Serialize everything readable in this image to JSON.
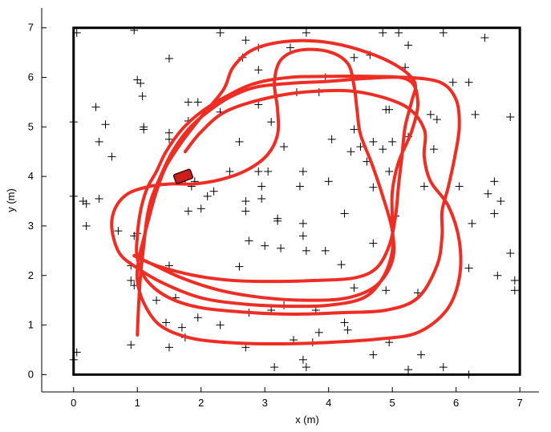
{
  "chart_data": {
    "type": "scatter",
    "xlabel": "x (m)",
    "ylabel": "y (m)",
    "xlim": [
      -0.5,
      7.3
    ],
    "ylim": [
      -0.35,
      7.4
    ],
    "xticks": [
      "0",
      "1",
      "2",
      "3",
      "4",
      "5",
      "6",
      "7"
    ],
    "yticks": [
      "0",
      "1",
      "2",
      "3",
      "4",
      "5",
      "6",
      "7"
    ],
    "grid": false,
    "arena": {
      "x": [
        0,
        7
      ],
      "y": [
        0,
        7
      ]
    },
    "colors": {
      "trajectory": "#ee2d24",
      "landmark": "#000000",
      "robot": "#cc1f1a",
      "arena": "#000000"
    },
    "robot_pose": {
      "x": 1.72,
      "y": 4.0,
      "heading_deg": 20
    },
    "landmarks": [
      [
        0.05,
        6.9
      ],
      [
        0.95,
        6.95
      ],
      [
        1.5,
        6.38
      ],
      [
        1.0,
        5.95
      ],
      [
        1.05,
        5.88
      ],
      [
        1.08,
        5.62
      ],
      [
        0.35,
        5.4
      ],
      [
        0.5,
        5.05
      ],
      [
        0.0,
        5.1
      ],
      [
        0.4,
        4.7
      ],
      [
        0.6,
        4.4
      ],
      [
        1.1,
        5.0
      ],
      [
        1.1,
        4.95
      ],
      [
        1.5,
        4.88
      ],
      [
        1.5,
        4.75
      ],
      [
        1.8,
        5.5
      ],
      [
        1.95,
        5.5
      ],
      [
        1.8,
        5.12
      ],
      [
        2.3,
        6.9
      ],
      [
        2.7,
        6.75
      ],
      [
        2.9,
        6.6
      ],
      [
        2.65,
        6.4
      ],
      [
        2.9,
        6.15
      ],
      [
        3.4,
        6.6
      ],
      [
        3.65,
        6.9
      ],
      [
        3.95,
        6.0
      ],
      [
        3.5,
        5.7
      ],
      [
        3.85,
        5.7
      ],
      [
        2.3,
        5.3
      ],
      [
        2.9,
        5.45
      ],
      [
        3.1,
        5.1
      ],
      [
        2.6,
        4.7
      ],
      [
        2.45,
        4.1
      ],
      [
        2.9,
        4.1
      ],
      [
        3.05,
        4.1
      ],
      [
        3.6,
        4.1
      ],
      [
        3.3,
        4.6
      ],
      [
        4.05,
        4.75
      ],
      [
        4.4,
        6.4
      ],
      [
        4.65,
        6.45
      ],
      [
        4.85,
        6.9
      ],
      [
        5.1,
        6.9
      ],
      [
        5.25,
        6.65
      ],
      [
        5.8,
        6.9
      ],
      [
        6.45,
        6.8
      ],
      [
        5.2,
        6.2
      ],
      [
        5.95,
        5.9
      ],
      [
        6.2,
        5.9
      ],
      [
        6.3,
        5.25
      ],
      [
        6.85,
        5.2
      ],
      [
        4.9,
        5.35
      ],
      [
        4.95,
        5.35
      ],
      [
        4.4,
        4.95
      ],
      [
        4.5,
        4.6
      ],
      [
        4.7,
        4.7
      ],
      [
        4.85,
        4.55
      ],
      [
        5.0,
        4.7
      ],
      [
        5.25,
        4.8
      ],
      [
        5.6,
        5.25
      ],
      [
        5.7,
        5.15
      ],
      [
        5.65,
        4.55
      ],
      [
        4.35,
        4.5
      ],
      [
        4.95,
        4.1
      ],
      [
        4.6,
        4.3
      ],
      [
        4.0,
        3.9
      ],
      [
        3.55,
        3.8
      ],
      [
        2.95,
        3.8
      ],
      [
        2.95,
        3.55
      ],
      [
        2.7,
        3.5
      ],
      [
        2.7,
        3.3
      ],
      [
        2.2,
        3.7
      ],
      [
        2.1,
        3.6
      ],
      [
        2.0,
        3.35
      ],
      [
        1.8,
        3.3
      ],
      [
        1.9,
        3.9
      ],
      [
        1.85,
        3.8
      ],
      [
        1.75,
        3.95
      ],
      [
        3.2,
        3.15
      ],
      [
        3.2,
        3.1
      ],
      [
        3.6,
        3.05
      ],
      [
        3.6,
        2.8
      ],
      [
        3.65,
        2.5
      ],
      [
        4.7,
        3.78
      ],
      [
        5.05,
        3.2
      ],
      [
        5.5,
        3.8
      ],
      [
        6.05,
        3.8
      ],
      [
        6.6,
        3.9
      ],
      [
        6.5,
        3.65
      ],
      [
        6.7,
        3.5
      ],
      [
        6.6,
        3.25
      ],
      [
        6.25,
        3.05
      ],
      [
        6.85,
        2.45
      ],
      [
        6.2,
        2.15
      ],
      [
        6.65,
        2.0
      ],
      [
        6.92,
        1.9
      ],
      [
        6.92,
        1.7
      ],
      [
        4.25,
        3.25
      ],
      [
        4.7,
        2.65
      ],
      [
        4.2,
        2.22
      ],
      [
        3.95,
        2.5
      ],
      [
        3.0,
        2.6
      ],
      [
        3.25,
        2.55
      ],
      [
        2.75,
        2.7
      ],
      [
        2.6,
        2.18
      ],
      [
        0.95,
        2.8
      ],
      [
        1.0,
        2.85
      ],
      [
        0.7,
        2.9
      ],
      [
        0.0,
        3.6
      ],
      [
        0.15,
        3.5
      ],
      [
        0.2,
        3.45
      ],
      [
        0.4,
        3.55
      ],
      [
        0.2,
        3.0
      ],
      [
        0.9,
        2.2
      ],
      [
        0.95,
        1.8
      ],
      [
        0.9,
        1.9
      ],
      [
        1.5,
        2.2
      ],
      [
        1.6,
        1.55
      ],
      [
        1.3,
        1.5
      ],
      [
        4.4,
        1.75
      ],
      [
        4.9,
        1.7
      ],
      [
        5.4,
        1.65
      ],
      [
        3.3,
        1.4
      ],
      [
        3.8,
        1.3
      ],
      [
        3.1,
        1.3
      ],
      [
        2.75,
        1.25
      ],
      [
        2.3,
        1.0
      ],
      [
        1.95,
        1.15
      ],
      [
        1.45,
        1.05
      ],
      [
        1.7,
        0.95
      ],
      [
        1.75,
        0.75
      ],
      [
        0.9,
        0.6
      ],
      [
        1.5,
        0.55
      ],
      [
        0.0,
        0.3
      ],
      [
        0.05,
        0.45
      ],
      [
        2.7,
        0.55
      ],
      [
        3.45,
        0.7
      ],
      [
        3.85,
        0.85
      ],
      [
        3.75,
        0.65
      ],
      [
        3.6,
        0.3
      ],
      [
        3.15,
        0.15
      ],
      [
        3.65,
        0.15
      ],
      [
        4.25,
        1.05
      ],
      [
        4.3,
        0.9
      ],
      [
        4.7,
        0.4
      ],
      [
        4.95,
        0.65
      ],
      [
        5.45,
        0.4
      ],
      [
        5.25,
        0.1
      ],
      [
        5.8,
        0.15
      ],
      [
        6.2,
        0.0
      ]
    ],
    "series": [
      {
        "type": "line",
        "points": [
          [
            1.0,
            0.8
          ],
          [
            1.02,
            1.4
          ],
          [
            1.05,
            2.0
          ],
          [
            1.1,
            2.6
          ],
          [
            1.15,
            3.15
          ],
          [
            1.22,
            3.55
          ],
          [
            1.38,
            4.05
          ],
          [
            1.55,
            4.5
          ],
          [
            1.8,
            4.95
          ],
          [
            2.1,
            5.3
          ],
          [
            2.45,
            5.6
          ],
          [
            2.85,
            5.8
          ],
          [
            3.4,
            5.88
          ],
          [
            4.0,
            5.92
          ],
          [
            4.6,
            5.98
          ],
          [
            5.2,
            6.0
          ],
          [
            5.75,
            5.9
          ],
          [
            6.0,
            5.55
          ],
          [
            6.05,
            5.0
          ],
          [
            5.98,
            4.4
          ],
          [
            5.88,
            3.8
          ],
          [
            5.78,
            3.3
          ],
          [
            5.78,
            2.8
          ],
          [
            5.7,
            2.2
          ],
          [
            5.4,
            1.55
          ],
          [
            4.9,
            1.3
          ],
          [
            4.2,
            1.25
          ],
          [
            3.5,
            1.22
          ],
          [
            2.8,
            1.25
          ],
          [
            2.0,
            1.35
          ],
          [
            1.5,
            1.55
          ],
          [
            1.15,
            1.9
          ],
          [
            1.0,
            2.35
          ],
          [
            1.0,
            2.8
          ],
          [
            1.05,
            3.3
          ],
          [
            1.15,
            3.75
          ],
          [
            1.3,
            4.1
          ],
          [
            1.45,
            4.5
          ],
          [
            1.7,
            4.95
          ],
          [
            2.0,
            5.3
          ],
          [
            2.4,
            5.62
          ],
          [
            2.85,
            5.88
          ],
          [
            3.4,
            6.0
          ],
          [
            4.0,
            6.02
          ],
          [
            4.65,
            6.02
          ],
          [
            5.25,
            5.95
          ],
          [
            5.4,
            5.5
          ],
          [
            5.3,
            4.9
          ],
          [
            5.1,
            4.3
          ],
          [
            5.0,
            3.7
          ],
          [
            5.0,
            3.1
          ],
          [
            5.0,
            2.5
          ],
          [
            4.85,
            1.95
          ],
          [
            4.55,
            1.55
          ],
          [
            4.0,
            1.4
          ],
          [
            3.4,
            1.38
          ],
          [
            2.7,
            1.42
          ],
          [
            2.0,
            1.55
          ],
          [
            1.4,
            1.85
          ],
          [
            1.0,
            2.15
          ],
          [
            0.72,
            2.45
          ],
          [
            0.6,
            2.95
          ],
          [
            0.65,
            3.35
          ],
          [
            0.85,
            3.65
          ],
          [
            1.2,
            3.8
          ],
          [
            1.55,
            3.85
          ],
          [
            1.9,
            3.85
          ],
          [
            2.35,
            3.95
          ],
          [
            2.75,
            4.15
          ],
          [
            3.05,
            4.45
          ],
          [
            3.2,
            4.85
          ],
          [
            3.2,
            5.35
          ],
          [
            3.15,
            5.9
          ],
          [
            3.25,
            6.35
          ],
          [
            3.55,
            6.55
          ],
          [
            4.0,
            6.52
          ],
          [
            4.3,
            6.28
          ],
          [
            4.4,
            5.82
          ],
          [
            4.45,
            5.3
          ],
          [
            4.5,
            4.85
          ],
          [
            4.68,
            4.25
          ],
          [
            4.85,
            3.6
          ],
          [
            5.0,
            2.9
          ],
          [
            5.0,
            2.3
          ],
          [
            4.75,
            1.8
          ],
          [
            4.3,
            1.55
          ],
          [
            3.7,
            1.5
          ],
          [
            3.0,
            1.55
          ],
          [
            2.3,
            1.7
          ],
          [
            1.7,
            1.95
          ],
          [
            1.2,
            2.25
          ],
          [
            0.95,
            2.4
          ],
          [
            1.3,
            2.2
          ],
          [
            1.9,
            2.0
          ],
          [
            2.5,
            1.9
          ],
          [
            3.1,
            1.88
          ],
          [
            3.8,
            1.9
          ],
          [
            4.4,
            1.95
          ],
          [
            4.75,
            2.15
          ],
          [
            4.95,
            2.6
          ],
          [
            5.05,
            3.2
          ],
          [
            5.1,
            3.85
          ],
          [
            5.15,
            4.4
          ],
          [
            5.2,
            5.0
          ],
          [
            5.3,
            5.5
          ],
          [
            5.35,
            5.9
          ],
          [
            5.05,
            6.25
          ],
          [
            4.5,
            6.55
          ],
          [
            3.9,
            6.72
          ],
          [
            3.3,
            6.72
          ],
          [
            2.8,
            6.55
          ],
          [
            2.5,
            6.2
          ],
          [
            2.35,
            5.75
          ],
          [
            2.0,
            5.2
          ],
          [
            1.7,
            4.7
          ],
          [
            1.45,
            4.2
          ],
          [
            1.3,
            3.7
          ],
          [
            1.2,
            3.25
          ],
          [
            1.1,
            2.75
          ],
          [
            1.02,
            2.3
          ],
          [
            1.0,
            1.9
          ],
          [
            1.1,
            1.45
          ],
          [
            1.35,
            1.0
          ],
          [
            1.8,
            0.75
          ],
          [
            2.4,
            0.65
          ],
          [
            3.2,
            0.62
          ],
          [
            4.0,
            0.65
          ],
          [
            4.8,
            0.72
          ],
          [
            5.4,
            0.85
          ],
          [
            5.85,
            1.3
          ],
          [
            6.05,
            1.95
          ],
          [
            6.05,
            2.7
          ],
          [
            5.88,
            3.4
          ],
          [
            5.6,
            3.9
          ],
          [
            5.5,
            4.4
          ],
          [
            5.5,
            4.95
          ],
          [
            5.2,
            5.42
          ],
          [
            4.5,
            5.7
          ],
          [
            3.8,
            5.72
          ],
          [
            3.1,
            5.6
          ],
          [
            2.4,
            5.32
          ],
          [
            2.0,
            4.9
          ],
          [
            1.75,
            4.5
          ]
        ]
      }
    ]
  }
}
